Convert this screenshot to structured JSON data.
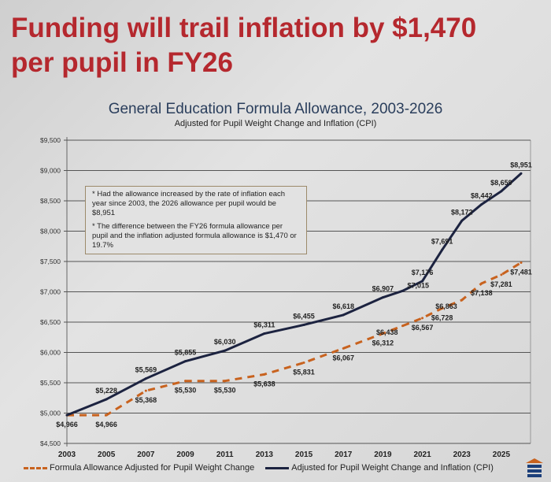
{
  "headline": [
    "Funding will trail inflation by $1,470",
    "per pupil in FY26"
  ],
  "chart_data": {
    "type": "line",
    "title": "General Education Formula Allowance, 2003-2026",
    "subtitle": "Adjusted for Pupil Weight Change and Inflation (CPI)",
    "xlabel": "",
    "ylabel": "",
    "xlim": [
      2003,
      2026
    ],
    "ylim": [
      4500,
      9500
    ],
    "y_ticks": [
      4500,
      5000,
      5500,
      6000,
      6500,
      7000,
      7500,
      8000,
      8500,
      9000,
      9500
    ],
    "y_tick_labels": [
      "$4,500",
      "$5,000",
      "$5,500",
      "$6,000",
      "$6,500",
      "$7,000",
      "$7,500",
      "$8,000",
      "$8,500",
      "$9,000",
      "$9,500"
    ],
    "x_ticks": [
      2003,
      2005,
      2007,
      2009,
      2011,
      2013,
      2015,
      2017,
      2019,
      2021,
      2023,
      2025
    ],
    "x_tick_labels": [
      "2003",
      "2005",
      "2007",
      "2009",
      "2011",
      "2013",
      "2015",
      "2017",
      "2019",
      "2021",
      "2023",
      "2025"
    ],
    "grid": true,
    "legend_position": "bottom",
    "series": [
      {
        "name": "Formula Allowance Adjusted for Pupil Weight Change",
        "color": "#c8621e",
        "style": "dashed",
        "x": [
          2003,
          2005,
          2007,
          2009,
          2011,
          2013,
          2015,
          2017,
          2019,
          2020,
          2021,
          2022,
          2023,
          2024,
          2025,
          2026
        ],
        "values": [
          4966,
          4966,
          5368,
          5530,
          5530,
          5638,
          5831,
          6067,
          6312,
          6438,
          6567,
          6728,
          6863,
          7138,
          7281,
          7481
        ],
        "labels": [
          "$4,966",
          "$4,966",
          "$5,368",
          "$5,530",
          "$5,530",
          "$5,638",
          "$5,831",
          "$6,067",
          "$6,312",
          "$6,438",
          "$6,567",
          "$6,728",
          "$6,863",
          "$7,138",
          "$7,281",
          "$7,481"
        ]
      },
      {
        "name": "Adjusted for Pupil Weight Change and Inflation (CPI)",
        "color": "#1c2340",
        "style": "solid",
        "x": [
          2003,
          2005,
          2007,
          2009,
          2011,
          2013,
          2015,
          2017,
          2019,
          2020,
          2021,
          2022,
          2023,
          2024,
          2025,
          2026
        ],
        "values": [
          4966,
          5228,
          5569,
          5855,
          6030,
          6311,
          6455,
          6618,
          6907,
          7015,
          7176,
          7691,
          8172,
          8442,
          8659,
          8951
        ],
        "labels": [
          "",
          "$5,228",
          "$5,569",
          "$5,855",
          "$6,030",
          "$6,311",
          "$6,455",
          "$6,618",
          "$6,907",
          "$7,015",
          "$7,176",
          "$7,691",
          "$8,172",
          "$8,442",
          "$8,659",
          "$8,951"
        ]
      }
    ],
    "annotations": [
      "* Had the allowance increased by the rate of inflation each year since 2003, the 2026 allowance per pupil would be $8,951",
      "* The difference between the FY26 formula allowance per pupil and the inflation adjusted formula allowance is $1,470 or 19.7%"
    ]
  }
}
